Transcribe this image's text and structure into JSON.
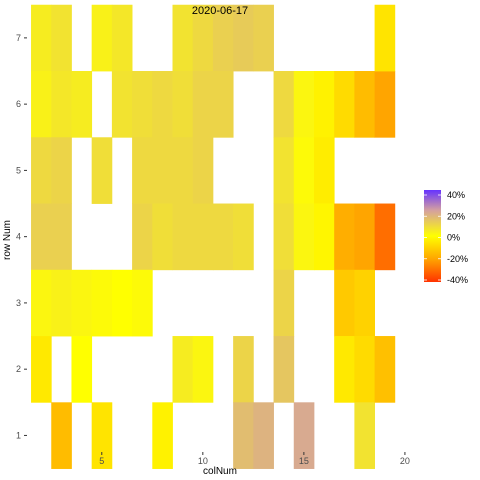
{
  "chart_data": {
    "type": "heatmap",
    "title": "2020-06-17",
    "xlabel": "colNum",
    "ylabel": "row Num",
    "xlim": [
      1.3,
      20.4
    ],
    "ylim": [
      0.75,
      7.3
    ],
    "x_ticks": [
      5,
      10,
      15,
      20
    ],
    "y_ticks": [
      1,
      2,
      3,
      4,
      5,
      6,
      7
    ],
    "grid": false,
    "legend_position": "right",
    "legend_labels": [
      "40%",
      "20%",
      "0%",
      "-20%",
      "-40%"
    ],
    "legend_values": [
      40,
      20,
      0,
      -20,
      -40
    ],
    "color_scale": {
      "min": -45,
      "max": 45,
      "low": "#ff3300",
      "mid_low": "#ffa500",
      "mid": "#ffff00",
      "mid_high": "#d4a0a0",
      "high": "#6633ff"
    },
    "description_units": "percent change",
    "cells": [
      {
        "col": 2,
        "row": 7,
        "value": 4
      },
      {
        "col": 2,
        "row": 6,
        "value": 3
      },
      {
        "col": 2,
        "row": 5,
        "value": 8
      },
      {
        "col": 2,
        "row": 4,
        "value": 10
      },
      {
        "col": 2,
        "row": 3,
        "value": 2
      },
      {
        "col": 2,
        "row": 2,
        "value": -5
      },
      {
        "col": 3,
        "row": 7,
        "value": 6
      },
      {
        "col": 3,
        "row": 6,
        "value": 5
      },
      {
        "col": 3,
        "row": 5,
        "value": 9
      },
      {
        "col": 3,
        "row": 4,
        "value": 10
      },
      {
        "col": 3,
        "row": 3,
        "value": 3
      },
      {
        "col": 3,
        "row": 1,
        "value": -15
      },
      {
        "col": 4,
        "row": 6,
        "value": 4
      },
      {
        "col": 4,
        "row": 3,
        "value": 2
      },
      {
        "col": 4,
        "row": 2,
        "value": 0
      },
      {
        "col": 5,
        "row": 7,
        "value": 3
      },
      {
        "col": 5,
        "row": 3,
        "value": 1
      },
      {
        "col": 5,
        "row": 5,
        "value": 7
      },
      {
        "col": 5,
        "row": 1,
        "value": -6
      },
      {
        "col": 6,
        "row": 7,
        "value": 5
      },
      {
        "col": 6,
        "row": 6,
        "value": 6
      },
      {
        "col": 6,
        "row": 3,
        "value": 0
      },
      {
        "col": 7,
        "row": 6,
        "value": 7
      },
      {
        "col": 7,
        "row": 5,
        "value": 8
      },
      {
        "col": 7,
        "row": 4,
        "value": 9
      },
      {
        "col": 7,
        "row": 3,
        "value": 1
      },
      {
        "col": 8,
        "row": 6,
        "value": 8
      },
      {
        "col": 8,
        "row": 5,
        "value": 8
      },
      {
        "col": 8,
        "row": 4,
        "value": 7
      },
      {
        "col": 8,
        "row": 1,
        "value": -3
      },
      {
        "col": 9,
        "row": 7,
        "value": 6
      },
      {
        "col": 9,
        "row": 6,
        "value": 7
      },
      {
        "col": 9,
        "row": 5,
        "value": 8
      },
      {
        "col": 9,
        "row": 4,
        "value": 8
      },
      {
        "col": 9,
        "row": 2,
        "value": 4
      },
      {
        "col": 10,
        "row": 7,
        "value": 8
      },
      {
        "col": 10,
        "row": 6,
        "value": 9
      },
      {
        "col": 10,
        "row": 5,
        "value": 9
      },
      {
        "col": 10,
        "row": 4,
        "value": 8
      },
      {
        "col": 10,
        "row": 2,
        "value": 2
      },
      {
        "col": 11,
        "row": 7,
        "value": 10
      },
      {
        "col": 11,
        "row": 6,
        "value": 9
      },
      {
        "col": 11,
        "row": 4,
        "value": 8
      },
      {
        "col": 12,
        "row": 7,
        "value": 11
      },
      {
        "col": 12,
        "row": 4,
        "value": 7
      },
      {
        "col": 12,
        "row": 2,
        "value": 9
      },
      {
        "col": 12,
        "row": 1,
        "value": 14
      },
      {
        "col": 13,
        "row": 7,
        "value": 10
      },
      {
        "col": 13,
        "row": 1,
        "value": 16
      },
      {
        "col": 14,
        "row": 6,
        "value": 8
      },
      {
        "col": 14,
        "row": 5,
        "value": 6
      },
      {
        "col": 14,
        "row": 4,
        "value": 7
      },
      {
        "col": 14,
        "row": 3,
        "value": 9
      },
      {
        "col": 14,
        "row": 2,
        "value": 12
      },
      {
        "col": 15,
        "row": 6,
        "value": 2
      },
      {
        "col": 15,
        "row": 5,
        "value": 1
      },
      {
        "col": 15,
        "row": 4,
        "value": 2
      },
      {
        "col": 15,
        "row": 1,
        "value": 18
      },
      {
        "col": 16,
        "row": 6,
        "value": -3
      },
      {
        "col": 16,
        "row": 5,
        "value": -4
      },
      {
        "col": 16,
        "row": 4,
        "value": -2
      },
      {
        "col": 17,
        "row": 6,
        "value": -8
      },
      {
        "col": 17,
        "row": 4,
        "value": -18
      },
      {
        "col": 17,
        "row": 3,
        "value": -12
      },
      {
        "col": 17,
        "row": 2,
        "value": -5
      },
      {
        "col": 18,
        "row": 6,
        "value": -15
      },
      {
        "col": 18,
        "row": 4,
        "value": -20
      },
      {
        "col": 18,
        "row": 3,
        "value": -10
      },
      {
        "col": 18,
        "row": 2,
        "value": -8
      },
      {
        "col": 18,
        "row": 1,
        "value": 6
      },
      {
        "col": 19,
        "row": 6,
        "value": -20
      },
      {
        "col": 19,
        "row": 7,
        "value": -6
      },
      {
        "col": 19,
        "row": 4,
        "value": -32
      },
      {
        "col": 19,
        "row": 2,
        "value": -14
      }
    ]
  }
}
